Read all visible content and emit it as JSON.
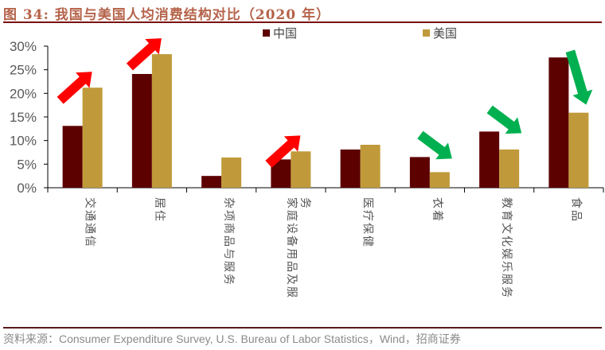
{
  "header": {
    "title": "图 34: 我国与美国人均消费结构对比（2020 年）"
  },
  "footer": {
    "source": "资料来源：Consumer Expenditure Survey, U.S. Bureau of Labor Statistics，Wind，招商证券"
  },
  "colors": {
    "china": "#5c0000",
    "usa": "#c09a3a",
    "arrow_up": "#ff0000",
    "arrow_down": "#00b050",
    "title": "#b5634a",
    "rule": "#7a1212"
  },
  "chart_data": {
    "type": "bar",
    "title": "我国与美国人均消费结构对比（2020 年）",
    "xlabel": "",
    "ylabel": "",
    "ylim": [
      0,
      30
    ],
    "yticks": [
      0,
      5,
      10,
      15,
      20,
      25,
      30
    ],
    "ytick_labels": [
      "0%",
      "5%",
      "10%",
      "15%",
      "20%",
      "25%",
      "30%"
    ],
    "grid": false,
    "legend_position": "top",
    "categories": [
      "交通通信",
      "居住",
      "杂项商品与服务",
      "家庭设备用品及服务",
      "医疗保健",
      "衣着",
      "教育文化娱乐服务",
      "食品"
    ],
    "category_label_lines": [
      [
        "交通通信"
      ],
      [
        "居住"
      ],
      [
        "杂项商品与服务"
      ],
      [
        "家庭设备用品及服",
        "务"
      ],
      [
        "医疗保健"
      ],
      [
        "衣着"
      ],
      [
        "教育文化娱乐服务"
      ],
      [
        "食品"
      ]
    ],
    "series": [
      {
        "name": "中国",
        "values": [
          13.1,
          24.1,
          2.5,
          6.0,
          8.1,
          6.5,
          11.9,
          27.6
        ]
      },
      {
        "name": "美国",
        "values": [
          21.2,
          28.3,
          6.4,
          7.7,
          9.1,
          3.3,
          8.1,
          15.9
        ]
      }
    ],
    "annotations": [
      {
        "category": "交通通信",
        "type": "arrow",
        "direction": "up",
        "color": "red"
      },
      {
        "category": "居住",
        "type": "arrow",
        "direction": "up",
        "color": "red"
      },
      {
        "category": "家庭设备用品及服务",
        "type": "arrow",
        "direction": "up",
        "color": "red"
      },
      {
        "category": "衣着",
        "type": "arrow",
        "direction": "down",
        "color": "green"
      },
      {
        "category": "教育文化娱乐服务",
        "type": "arrow",
        "direction": "down",
        "color": "green"
      },
      {
        "category": "食品",
        "type": "arrow",
        "direction": "down",
        "color": "green"
      }
    ]
  }
}
